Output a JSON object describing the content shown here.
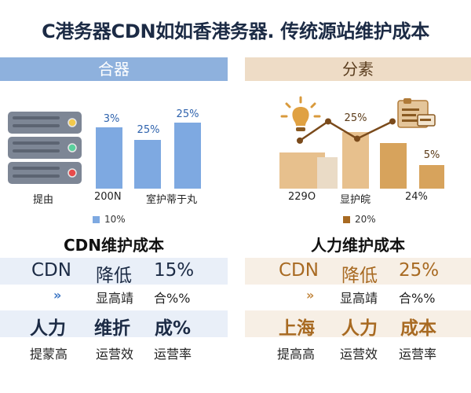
{
  "title": "C港务器CDN如如香港务器. 传统源站维护成本",
  "left_panel": {
    "header": "合器",
    "section_title": "CDN维护成本",
    "rows": [
      {
        "c1": "CDN",
        "c2": "降低",
        "c3": "15%"
      },
      {
        "c1": "»",
        "c2": "显高靖",
        "c3": "合%%"
      },
      {
        "c1": "人力",
        "c2": "维折",
        "c3": "成%"
      },
      {
        "c1": "提蒙高",
        "c2": "运营效",
        "c3": "运营率"
      }
    ]
  },
  "right_panel": {
    "header": "分素",
    "section_title": "人力维护成本",
    "rows": [
      {
        "c1": "CDN",
        "c2": "降低",
        "c3": "25%"
      },
      {
        "c1": "»",
        "c2": "显高靖",
        "c3": "合%%"
      },
      {
        "c1": "上海",
        "c2": "人力",
        "c3": "成本"
      },
      {
        "c1": "提高高",
        "c2": "运营效",
        "c3": "运营率"
      }
    ]
  },
  "colors": {
    "left_accent": "#8eb1dd",
    "left_bar": "#7ea9e1",
    "right_accent": "#eedcc6",
    "right_bar": "#d7a35c",
    "right_line": "#7a4a1b"
  },
  "icons": {
    "left": "server-rack-icon",
    "right_bulb": "lightbulb-icon",
    "right_card": "document-card-icon"
  },
  "chart_data": [
    {
      "type": "bar",
      "categories": [
        "提由",
        "200N",
        "室护蒂于丸"
      ],
      "values": [
        3,
        25,
        25
      ],
      "value_labels": [
        "3%",
        "25%",
        "25%"
      ],
      "legend": "10%",
      "ylim": [
        0,
        28
      ]
    },
    {
      "type": "bar",
      "categories": [
        "229O",
        "",
        "显护皖",
        "",
        "24%"
      ],
      "values": [
        25,
        30,
        25,
        34,
        5
      ],
      "value_labels": [
        "",
        "",
        "25%",
        "",
        "5%"
      ],
      "line_values": [
        25,
        35,
        26,
        35
      ],
      "legend": "20%",
      "ylim": [
        0,
        45
      ]
    }
  ]
}
